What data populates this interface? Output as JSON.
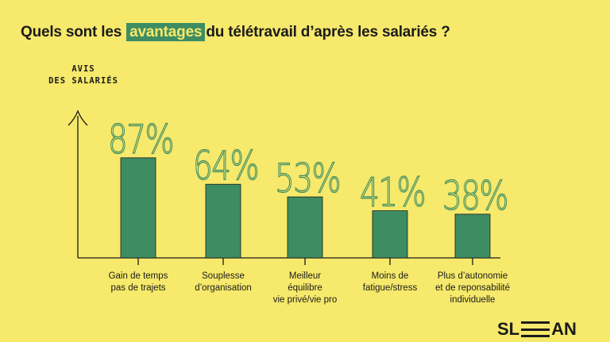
{
  "title": {
    "before": "Quels sont les",
    "highlight": "avantages",
    "after": "du télétravail d’après les salariés ?"
  },
  "y_axis_title": [
    "AVIS",
    "DES SALARIÉS"
  ],
  "logo": {
    "left": "SL",
    "right": "AN"
  },
  "colors": {
    "background": "#f6e96b",
    "bar": "#3e8d62",
    "value_label": "#3e8d62",
    "axis": "#1b1b1b"
  },
  "chart_data": {
    "type": "bar",
    "categories": [
      [
        "Gain de temps",
        "pas de trajets"
      ],
      [
        "Souplesse",
        "d’organisation"
      ],
      [
        "Meilleur",
        "équilibre",
        "vie privé/vie pro"
      ],
      [
        "Moins de",
        "fatigue/stress"
      ],
      [
        "Plus d’autonomie",
        "et de reponsabilité",
        "individuelle"
      ]
    ],
    "values": [
      87,
      64,
      53,
      41,
      38
    ],
    "value_labels": [
      "87%",
      "64%",
      "53%",
      "41%",
      "38%"
    ],
    "title": "Quels sont les avantages du télétravail d’après les salariés ?",
    "ylabel": "AVIS DES SALARIÉS",
    "ylim": [
      0,
      100
    ],
    "grid": false,
    "legend": "none"
  }
}
